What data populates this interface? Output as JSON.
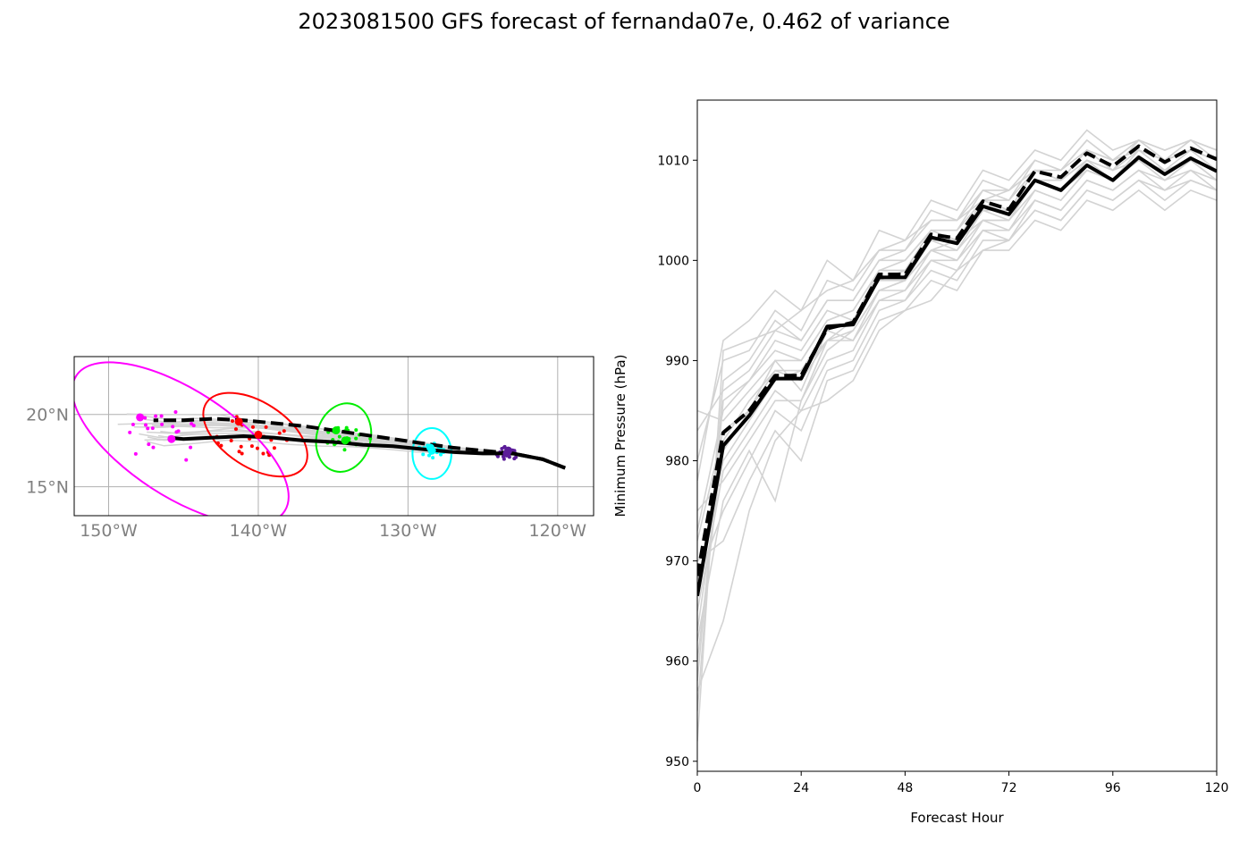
{
  "title": "2023081500 GFS forecast of fernanda07e, 0.462 of variance",
  "colors": {
    "ensemble": "#d3d3d3",
    "mean": "#000000",
    "grid": "#b0b0b0",
    "tick_map": "#808080",
    "uncertainty": [
      "#ff00ff",
      "#ff0000",
      "#00ee00",
      "#00ffff",
      "#5b1c99"
    ]
  },
  "chart_data": [
    {
      "type": "map",
      "x_range": [
        -152.3,
        -117.6
      ],
      "y_range": [
        13.0,
        24.0
      ],
      "x_ticks": [
        -150,
        -140,
        -130,
        -120
      ],
      "x_tick_labels": [
        "150°W",
        "140°W",
        "130°W",
        "120°W"
      ],
      "y_ticks": [
        15,
        20
      ],
      "y_tick_labels": [
        "15°N",
        "20°N"
      ],
      "grid": true,
      "mean_tracks": [
        {
          "style": "solid",
          "points": [
            [
              -119.5,
              16.3
            ],
            [
              -121,
              16.9
            ],
            [
              -123,
              17.3
            ],
            [
              -125,
              17.3
            ],
            [
              -127,
              17.4
            ],
            [
              -129,
              17.6
            ],
            [
              -131,
              17.8
            ],
            [
              -133,
              17.9
            ],
            [
              -135,
              18.1
            ],
            [
              -137,
              18.2
            ],
            [
              -139,
              18.4
            ],
            [
              -141,
              18.5
            ],
            [
              -143,
              18.4
            ],
            [
              -145,
              18.3
            ],
            [
              -146,
              18.4
            ]
          ]
        },
        {
          "style": "dashed",
          "points": [
            [
              -119.5,
              16.3
            ],
            [
              -121,
              16.9
            ],
            [
              -123,
              17.3
            ],
            [
              -125,
              17.5
            ],
            [
              -127,
              17.7
            ],
            [
              -129,
              18.0
            ],
            [
              -131,
              18.3
            ],
            [
              -133,
              18.6
            ],
            [
              -135,
              18.9
            ],
            [
              -137,
              19.2
            ],
            [
              -139,
              19.4
            ],
            [
              -141,
              19.6
            ],
            [
              -143,
              19.7
            ],
            [
              -145,
              19.6
            ],
            [
              -147,
              19.6
            ]
          ]
        }
      ],
      "uncertainty_ellipses": [
        {
          "color": "#ff00ff",
          "center": [
            -145.2,
            18.0
          ],
          "semi_major_deg": 8.3,
          "semi_minor_deg": 2.3,
          "angle_deg": -33
        },
        {
          "color": "#ff0000",
          "center": [
            -140.2,
            18.6
          ],
          "semi_major_deg": 3.9,
          "semi_minor_deg": 1.4,
          "angle_deg": -33
        },
        {
          "color": "#00ee00",
          "center": [
            -134.3,
            18.4
          ],
          "semi_major_deg": 1.8,
          "semi_minor_deg": 1.5,
          "angle_deg": -15
        },
        {
          "color": "#00ffff",
          "center": [
            -128.4,
            17.3
          ],
          "semi_major_deg": 1.3,
          "semi_minor_deg": 1.1,
          "angle_deg": 0
        }
      ],
      "member_positions": [
        {
          "color": "#5b1c99",
          "spread": [
            0.8,
            0.5
          ],
          "count": 24,
          "center": [
            -123.3,
            17.3
          ]
        },
        {
          "color": "#00ffff",
          "spread": [
            1.0,
            0.6
          ],
          "count": 20,
          "center": [
            -128.5,
            17.5
          ]
        },
        {
          "color": "#00ee00",
          "spread": [
            1.7,
            0.8
          ],
          "count": 24,
          "center": [
            -134.2,
            18.3
          ]
        },
        {
          "color": "#ff0000",
          "spread": [
            2.6,
            1.5
          ],
          "count": 26,
          "center": [
            -140.5,
            18.5
          ]
        },
        {
          "color": "#ff00ff",
          "spread": [
            3.2,
            2.0
          ],
          "count": 20,
          "center": [
            -146.5,
            18.5
          ]
        }
      ],
      "mean_markers": [
        {
          "color": "#ff00ff",
          "points": [
            [
              -147.9,
              19.8
            ],
            [
              -145.8,
              18.3
            ]
          ]
        },
        {
          "color": "#ff0000",
          "points": [
            [
              -141.3,
              19.5
            ],
            [
              -140.0,
              18.6
            ]
          ]
        },
        {
          "color": "#00ee00",
          "points": [
            [
              -134.8,
              18.9
            ],
            [
              -134.2,
              18.2
            ]
          ]
        },
        {
          "color": "#00ffff",
          "points": [
            [
              -128.5,
              17.7
            ],
            [
              -128.4,
              17.5
            ]
          ]
        },
        {
          "color": "#5b1c99",
          "points": [
            [
              -123.4,
              17.3
            ],
            [
              -123.3,
              17.5
            ]
          ]
        }
      ]
    },
    {
      "type": "line",
      "xlabel": "Forecast Hour",
      "ylabel": "Minimum Pressure (hPa)",
      "xlim": [
        0,
        120
      ],
      "ylim": [
        949,
        1016
      ],
      "x_ticks": [
        0,
        24,
        48,
        72,
        96,
        120
      ],
      "y_ticks": [
        950,
        960,
        970,
        980,
        990,
        1000,
        1010
      ],
      "x": [
        0,
        6,
        12,
        18,
        24,
        30,
        36,
        42,
        48,
        54,
        60,
        66,
        72,
        78,
        84,
        90,
        96,
        102,
        108,
        114,
        120
      ],
      "series": [
        {
          "style": "solid",
          "role": "mean",
          "values": [
            966.5,
            981.5,
            984.5,
            988.2,
            988.2,
            993.4,
            993.6,
            998.3,
            998.3,
            1002.3,
            1001.7,
            1005.4,
            1004.6,
            1008.0,
            1007.0,
            1009.5,
            1008.0,
            1010.3,
            1008.6,
            1010.2,
            1008.9
          ]
        },
        {
          "style": "dashed",
          "role": "mean",
          "values": [
            968.5,
            982.8,
            985.0,
            988.5,
            988.5,
            993.2,
            993.8,
            998.6,
            998.6,
            1002.6,
            1002.2,
            1005.9,
            1005.1,
            1008.9,
            1008.3,
            1010.7,
            1009.4,
            1011.4,
            1009.8,
            1011.2,
            1010.1
          ]
        }
      ],
      "ensemble_members": [
        [
          952,
          991,
          992,
          993,
          995,
          997,
          998,
          1001,
          1002,
          1004,
          1004,
          1006,
          1007,
          1009,
          1008,
          1011,
          1010,
          1012,
          1010,
          1012,
          1010
        ],
        [
          955,
          988,
          990,
          994,
          992,
          996,
          996,
          1000,
          1000,
          1003,
          1002,
          1006,
          1005,
          1009,
          1008,
          1011,
          1009,
          1012,
          1010,
          1012,
          1011
        ],
        [
          958,
          986,
          988,
          991,
          990,
          994,
          995,
          999,
          999,
          1002,
          1002,
          1005,
          1005,
          1008,
          1008,
          1010,
          1009,
          1011,
          1010,
          1011,
          1010
        ],
        [
          960,
          982,
          986,
          989,
          988,
          992,
          994,
          998,
          998,
          1002,
          1001,
          1005,
          1004,
          1008,
          1007,
          1010,
          1008,
          1011,
          1009,
          1011,
          1009
        ],
        [
          963,
          981,
          985,
          990,
          987,
          993,
          992,
          997,
          997,
          1001,
          1001,
          1004,
          1004,
          1007,
          1006,
          1009,
          1008,
          1010,
          1008,
          1010,
          1008
        ],
        [
          965,
          979,
          983,
          987,
          985,
          990,
          991,
          996,
          997,
          1000,
          1000,
          1003,
          1003,
          1006,
          1005,
          1008,
          1007,
          1009,
          1007,
          1009,
          1007
        ],
        [
          968,
          975,
          980,
          985,
          983,
          989,
          990,
          995,
          996,
          999,
          998,
          1002,
          1002,
          1005,
          1004,
          1007,
          1006,
          1008,
          1006,
          1008,
          1007
        ],
        [
          970,
          972,
          978,
          983,
          980,
          988,
          989,
          994,
          995,
          998,
          997,
          1001,
          1001,
          1004,
          1003,
          1006,
          1005,
          1007,
          1005,
          1007,
          1006
        ],
        [
          973,
          985,
          988,
          992,
          991,
          995,
          994,
          999,
          1000,
          1003,
          1003,
          1007,
          1006,
          1010,
          1009,
          1012,
          1010,
          1012,
          1011,
          1012,
          1011
        ],
        [
          975,
          978,
          982,
          986,
          986,
          991,
          993,
          997,
          998,
          1001,
          1002,
          1004,
          1004,
          1008,
          1007,
          1009,
          1008,
          1010,
          1009,
          1010,
          1009
        ],
        [
          978,
          992,
          994,
          997,
          995,
          1000,
          998,
          1003,
          1002,
          1006,
          1005,
          1009,
          1008,
          1011,
          1010,
          1013,
          1011,
          1012,
          1011,
          1012,
          1011
        ],
        [
          980,
          990,
          991,
          995,
          993,
          998,
          997,
          1001,
          1001,
          1005,
          1004,
          1008,
          1007,
          1010,
          1009,
          1012,
          1010,
          1011,
          1010,
          1011,
          1010
        ],
        [
          983,
          987,
          989,
          993,
          992,
          996,
          996,
          1000,
          1001,
          1004,
          1004,
          1007,
          1007,
          1009,
          1009,
          1011,
          1010,
          1011,
          1010,
          1011,
          1010
        ],
        [
          985,
          984,
          987,
          990,
          990,
          994,
          995,
          999,
          999,
          1003,
          1003,
          1006,
          1006,
          1009,
          1008,
          1010,
          1009,
          1010,
          1009,
          1010,
          1009
        ],
        [
          962,
          976,
          981,
          976,
          986,
          992,
          992,
          996,
          996,
          1000,
          999,
          1003,
          1002,
          1006,
          1005,
          1008,
          1007,
          1009,
          1008,
          1009,
          1008
        ],
        [
          957,
          964,
          975,
          982,
          985,
          986,
          988,
          993,
          995,
          996,
          999,
          1001,
          1002,
          1005,
          1004,
          1007,
          1006,
          1008,
          1007,
          1008,
          1007
        ],
        [
          972,
          983,
          985,
          989,
          989,
          992,
          993,
          997,
          998,
          1001,
          1000,
          1004,
          1003,
          1007,
          1006,
          1009,
          1008,
          1010,
          1008,
          1010,
          1008
        ],
        [
          967,
          980,
          984,
          988,
          989,
          993,
          994,
          998,
          999,
          1002,
          1002,
          1005,
          1005,
          1008,
          1007,
          1009,
          1008,
          1010,
          1009,
          1010,
          1009
        ]
      ]
    }
  ]
}
